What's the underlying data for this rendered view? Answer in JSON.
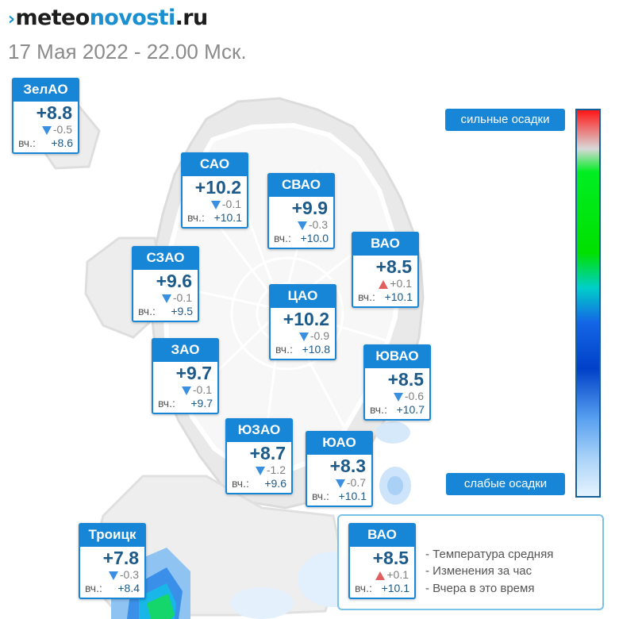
{
  "logo": {
    "mark": "›",
    "part1": "meteo",
    "part2": "novosti",
    "part3": ".ru"
  },
  "subtitle": "17 Мая 2022 - 22.00 Мск.",
  "cards": {
    "zelao": {
      "name": "ЗелАО",
      "temp": "+8.8",
      "change": "-0.5",
      "trend": "down",
      "yesterday_label": "вч.:",
      "yesterday": "+8.6"
    },
    "sao": {
      "name": "САО",
      "temp": "+10.2",
      "change": "-0.1",
      "trend": "down",
      "yesterday_label": "вч.:",
      "yesterday": "+10.1"
    },
    "svao": {
      "name": "СВАО",
      "temp": "+9.9",
      "change": "-0.3",
      "trend": "down",
      "yesterday_label": "вч.:",
      "yesterday": "+10.0"
    },
    "vao": {
      "name": "ВАО",
      "temp": "+8.5",
      "change": "+0.1",
      "trend": "up",
      "yesterday_label": "вч.:",
      "yesterday": "+10.1"
    },
    "szao": {
      "name": "СЗАО",
      "temp": "+9.6",
      "change": "-0.1",
      "trend": "down",
      "yesterday_label": "вч.:",
      "yesterday": "+9.5"
    },
    "cao": {
      "name": "ЦАО",
      "temp": "+10.2",
      "change": "-0.9",
      "trend": "down",
      "yesterday_label": "вч.:",
      "yesterday": "+10.8"
    },
    "zao": {
      "name": "ЗАО",
      "temp": "+9.7",
      "change": "-0.1",
      "trend": "down",
      "yesterday_label": "вч.:",
      "yesterday": "+9.7"
    },
    "yuvao": {
      "name": "ЮВАО",
      "temp": "+8.5",
      "change": "-0.6",
      "trend": "down",
      "yesterday_label": "вч.:",
      "yesterday": "+10.7"
    },
    "yuzao": {
      "name": "ЮЗАО",
      "temp": "+8.7",
      "change": "-1.2",
      "trend": "down",
      "yesterday_label": "вч.:",
      "yesterday": "+9.6"
    },
    "yuao": {
      "name": "ЮАО",
      "temp": "+8.3",
      "change": "-0.7",
      "trend": "down",
      "yesterday_label": "вч.:",
      "yesterday": "+10.1"
    },
    "troitsk": {
      "name": "Троицк",
      "temp": "+7.8",
      "change": "-0.3",
      "trend": "down",
      "yesterday_label": "вч.:",
      "yesterday": "+8.4"
    },
    "legend": {
      "name": "ВАО",
      "temp": "+8.5",
      "change": "+0.1",
      "trend": "up",
      "yesterday_label": "вч.:",
      "yesterday": "+10.1"
    }
  },
  "precip_scale": {
    "top_label": "сильные осадки",
    "bottom_label": "слабые осадки"
  },
  "legend_notes": {
    "temp": "- Температура средняя",
    "change": "- Изменения за час",
    "yesterday": "- Вчера в это время"
  },
  "colors": {
    "accent": "#1886d6",
    "temp_text": "#1c5a8a",
    "trend_down": "#3a8fe0",
    "trend_up": "#e06060"
  }
}
